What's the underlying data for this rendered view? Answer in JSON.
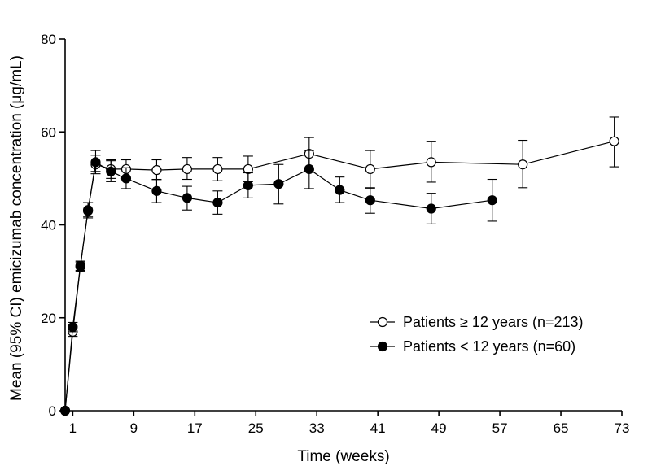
{
  "chart_data": {
    "type": "line",
    "xlabel": "Time (weeks)",
    "ylabel": "Mean (95% CI) emicizumab concentration (μg/mL)",
    "xlim": [
      0,
      73
    ],
    "ylim": [
      0,
      80
    ],
    "xticks": [
      1,
      9,
      17,
      25,
      33,
      41,
      49,
      57,
      65,
      73
    ],
    "yticks": [
      0,
      20,
      40,
      60,
      80
    ],
    "grid": false,
    "legend_position": "bottom-right",
    "series": [
      {
        "name": "Patients ≥ 12 years (n=213)",
        "marker": "open-circle",
        "points": [
          {
            "x": 0,
            "y": 0,
            "lo": 0,
            "hi": 0
          },
          {
            "x": 1,
            "y": 17,
            "lo": 16,
            "hi": 18.2
          },
          {
            "x": 2,
            "y": 31,
            "lo": 30,
            "hi": 32
          },
          {
            "x": 3,
            "y": 43.2,
            "lo": 41.8,
            "hi": 44.8
          },
          {
            "x": 4,
            "y": 53,
            "lo": 51,
            "hi": 55
          },
          {
            "x": 6,
            "y": 52,
            "lo": 50,
            "hi": 54
          },
          {
            "x": 8,
            "y": 52,
            "lo": 50,
            "hi": 54
          },
          {
            "x": 12,
            "y": 51.8,
            "lo": 49.5,
            "hi": 54
          },
          {
            "x": 16,
            "y": 52,
            "lo": 49.8,
            "hi": 54.5
          },
          {
            "x": 20,
            "y": 52,
            "lo": 49.5,
            "hi": 54.5
          },
          {
            "x": 24,
            "y": 52,
            "lo": 49.3,
            "hi": 54.8
          },
          {
            "x": 32,
            "y": 55.3,
            "lo": 51.8,
            "hi": 58.8
          },
          {
            "x": 40,
            "y": 52,
            "lo": 47.8,
            "hi": 56
          },
          {
            "x": 48,
            "y": 53.5,
            "lo": 49.2,
            "hi": 58
          },
          {
            "x": 60,
            "y": 53,
            "lo": 48,
            "hi": 58.2
          },
          {
            "x": 72,
            "y": 58,
            "lo": 52.5,
            "hi": 63.2
          }
        ]
      },
      {
        "name": "Patients < 12 years (n=60)",
        "marker": "filled-circle",
        "points": [
          {
            "x": 0,
            "y": 0,
            "lo": 0,
            "hi": 0
          },
          {
            "x": 1,
            "y": 18,
            "lo": 17,
            "hi": 19
          },
          {
            "x": 2,
            "y": 31.2,
            "lo": 30.2,
            "hi": 32.2
          },
          {
            "x": 3,
            "y": 43,
            "lo": 41.5,
            "hi": 44.8
          },
          {
            "x": 4,
            "y": 53.5,
            "lo": 51.5,
            "hi": 56
          },
          {
            "x": 6,
            "y": 51.5,
            "lo": 49.3,
            "hi": 53.8
          },
          {
            "x": 8,
            "y": 50,
            "lo": 47.8,
            "hi": 52.3
          },
          {
            "x": 12,
            "y": 47.3,
            "lo": 44.8,
            "hi": 49.8
          },
          {
            "x": 16,
            "y": 45.8,
            "lo": 43.2,
            "hi": 48.3
          },
          {
            "x": 20,
            "y": 44.8,
            "lo": 42.3,
            "hi": 47.3
          },
          {
            "x": 24,
            "y": 48.5,
            "lo": 45.8,
            "hi": 51.2
          },
          {
            "x": 28,
            "y": 48.8,
            "lo": 44.5,
            "hi": 53
          },
          {
            "x": 32,
            "y": 52,
            "lo": 47.8,
            "hi": 56
          },
          {
            "x": 36,
            "y": 47.5,
            "lo": 44.8,
            "hi": 50.3
          },
          {
            "x": 40,
            "y": 45.3,
            "lo": 42.5,
            "hi": 48
          },
          {
            "x": 48,
            "y": 43.5,
            "lo": 40.2,
            "hi": 46.8
          },
          {
            "x": 56,
            "y": 45.3,
            "lo": 40.8,
            "hi": 49.8
          }
        ]
      }
    ]
  }
}
